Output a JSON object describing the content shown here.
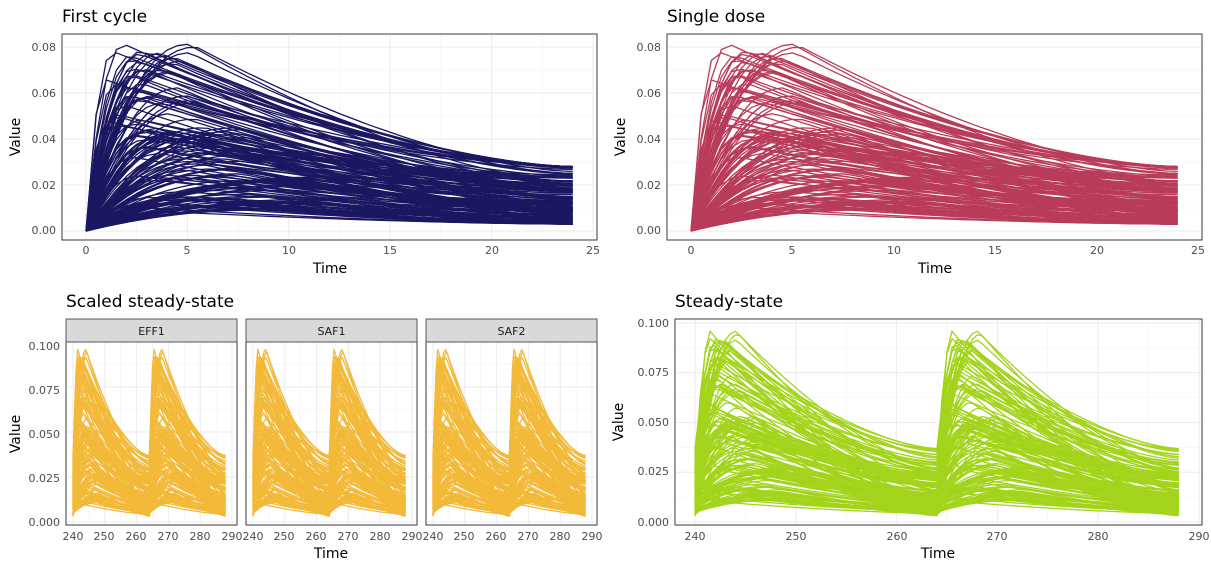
{
  "figure": {
    "panels": [
      {
        "id": "p1",
        "title": "First cycle",
        "color": "#1b1761"
      },
      {
        "id": "p2",
        "title": "Single dose",
        "color": "#b83c5a"
      },
      {
        "id": "p3",
        "title": "Scaled steady-state",
        "color": "#f3b939",
        "facets": [
          "EFF1",
          "SAF1",
          "SAF2"
        ]
      },
      {
        "id": "p4",
        "title": "Steady-state",
        "color": "#a3d41c"
      }
    ]
  },
  "chart_data": [
    {
      "type": "line",
      "title": "First cycle",
      "xlabel": "Time",
      "ylabel": "Value",
      "xlim": [
        0,
        24
      ],
      "ylim": [
        0,
        0.082
      ],
      "x_ticks": [
        "0",
        "5",
        "10",
        "15",
        "20",
        "25"
      ],
      "y_ticks": [
        "0.00",
        "0.02",
        "0.04",
        "0.06",
        "0.08"
      ],
      "grid": true,
      "series_count": 160,
      "profile": {
        "x": [
          0,
          1,
          2,
          3,
          4,
          5,
          6,
          8,
          10,
          12,
          15,
          18,
          20,
          24
        ],
        "peak_value_range": [
          0.008,
          0.082
        ],
        "peak_time_range": [
          1,
          12
        ],
        "end_value_range": [
          0.003,
          0.028
        ]
      }
    },
    {
      "type": "line",
      "title": "Single dose",
      "xlabel": "Time",
      "ylabel": "Value",
      "xlim": [
        0,
        24
      ],
      "ylim": [
        0,
        0.082
      ],
      "x_ticks": [
        "0",
        "5",
        "10",
        "15",
        "20",
        "25"
      ],
      "y_ticks": [
        "0.00",
        "0.02",
        "0.04",
        "0.06",
        "0.08"
      ],
      "grid": true,
      "series_count": 160,
      "profile": {
        "x": [
          0,
          1,
          2,
          3,
          4,
          5,
          6,
          8,
          10,
          12,
          15,
          18,
          20,
          24
        ],
        "peak_value_range": [
          0.008,
          0.082
        ],
        "peak_time_range": [
          1,
          12
        ],
        "end_value_range": [
          0.003,
          0.028
        ]
      }
    },
    {
      "type": "line",
      "title": "Scaled steady-state",
      "xlabel": "Time",
      "ylabel": "Value",
      "facets": [
        "EFF1",
        "SAF1",
        "SAF2"
      ],
      "xlim": [
        240,
        288
      ],
      "ylim": [
        0,
        0.097
      ],
      "x_ticks": [
        "240",
        "250",
        "260",
        "270",
        "280",
        "290"
      ],
      "y_ticks": [
        "0.000",
        "0.025",
        "0.050",
        "0.075",
        "0.100"
      ],
      "grid": true,
      "series_count": 160,
      "dose_times": [
        240,
        264
      ],
      "profile": {
        "peak_value_range": [
          0.012,
          0.097
        ],
        "trough_value_range": [
          0.003,
          0.043
        ]
      }
    },
    {
      "type": "line",
      "title": "Steady-state",
      "xlabel": "Time",
      "ylabel": "Value",
      "xlim": [
        240,
        288
      ],
      "ylim": [
        0,
        0.097
      ],
      "x_ticks": [
        "240",
        "250",
        "260",
        "270",
        "280",
        "290"
      ],
      "y_ticks": [
        "0.000",
        "0.025",
        "0.050",
        "0.075",
        "0.100"
      ],
      "grid": true,
      "series_count": 160,
      "dose_times": [
        240,
        264
      ],
      "profile": {
        "peak_value_range": [
          0.012,
          0.097
        ],
        "trough_value_range": [
          0.003,
          0.043
        ]
      }
    }
  ]
}
